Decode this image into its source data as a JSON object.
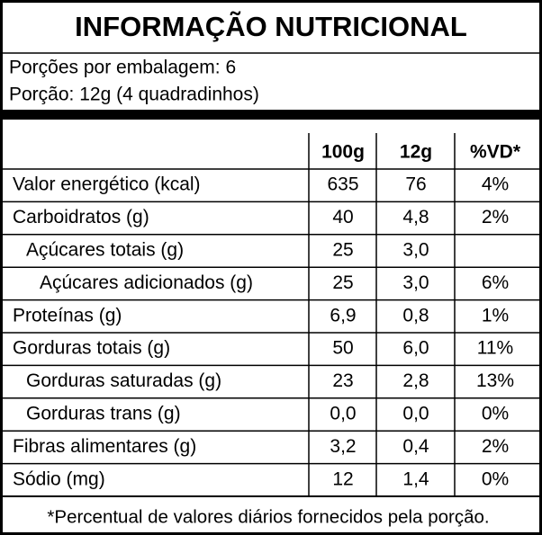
{
  "title": "INFORMAÇÃO NUTRICIONAL",
  "servings": [
    "Porções por embalagem: 6",
    "Porção: 12g (4 quadradinhos)"
  ],
  "table": {
    "header": [
      "100g",
      "12g",
      "%VD*"
    ],
    "rows": [
      [
        "Valor energético (kcal)",
        "635",
        "76",
        "4%"
      ],
      [
        "Carboidratos (g)",
        "40",
        "4,8",
        "2%"
      ],
      [
        "Açúcares totais (g)",
        "25",
        "3,0",
        null
      ],
      [
        "Açúcares adicionados (g)",
        "25",
        "3,0",
        "6%"
      ],
      [
        "Proteínas (g)",
        "6,9",
        "0,8",
        "1%"
      ],
      [
        "Gorduras totais (g)",
        "50",
        "6,0",
        "11%"
      ],
      [
        "Gorduras saturadas (g)",
        "23",
        "2,8",
        "13%"
      ],
      [
        "Gorduras trans (g)",
        "0,0",
        "0,0",
        "0%"
      ],
      [
        "Fibras alimentares (g)",
        "3,2",
        "0,4",
        "2%"
      ],
      [
        "Sódio (mg)",
        "12",
        "1,4",
        "0%"
      ]
    ]
  },
  "footnote": "*Percentual de valores diários fornecidos pela porção."
}
